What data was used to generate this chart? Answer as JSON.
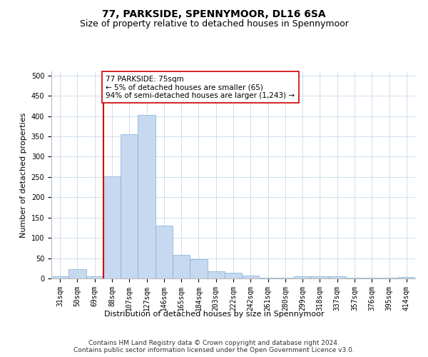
{
  "title": "77, PARKSIDE, SPENNYMOOR, DL16 6SA",
  "subtitle": "Size of property relative to detached houses in Spennymoor",
  "xlabel": "Distribution of detached houses by size in Spennymoor",
  "ylabel": "Number of detached properties",
  "categories": [
    "31sqm",
    "50sqm",
    "69sqm",
    "88sqm",
    "107sqm",
    "127sqm",
    "146sqm",
    "165sqm",
    "184sqm",
    "203sqm",
    "222sqm",
    "242sqm",
    "261sqm",
    "280sqm",
    "299sqm",
    "318sqm",
    "337sqm",
    "357sqm",
    "376sqm",
    "395sqm",
    "414sqm"
  ],
  "values": [
    5,
    22,
    5,
    252,
    355,
    403,
    130,
    58,
    48,
    17,
    14,
    7,
    2,
    1,
    6,
    6,
    5,
    1,
    2,
    1,
    3
  ],
  "bar_color": "#c6d9f0",
  "bar_edge_color": "#7bafd4",
  "vline_x_idx": 2,
  "vline_color": "#cc0000",
  "annotation_text": "77 PARKSIDE: 75sqm\n← 5% of detached houses are smaller (65)\n94% of semi-detached houses are larger (1,243) →",
  "annotation_box_color": "#ffffff",
  "annotation_box_edge": "#cc0000",
  "ylim": [
    0,
    510
  ],
  "yticks": [
    0,
    50,
    100,
    150,
    200,
    250,
    300,
    350,
    400,
    450,
    500
  ],
  "footer": "Contains HM Land Registry data © Crown copyright and database right 2024.\nContains public sector information licensed under the Open Government Licence v3.0.",
  "title_fontsize": 10,
  "subtitle_fontsize": 9,
  "axis_label_fontsize": 8,
  "tick_fontsize": 7,
  "annotation_fontsize": 7.5,
  "footer_fontsize": 6.5
}
